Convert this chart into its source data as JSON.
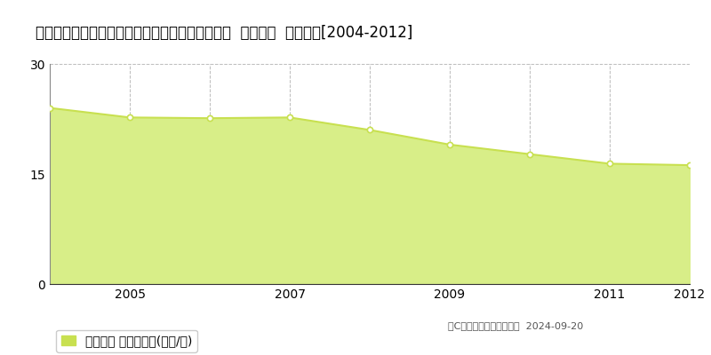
{
  "title": "愛知県知多郡南知多町大字片名字新師崎１０番５  公示地価  地価推移[2004-2012]",
  "years": [
    2004,
    2005,
    2006,
    2007,
    2008,
    2009,
    2010,
    2011,
    2012
  ],
  "values": [
    24.0,
    22.7,
    22.6,
    22.7,
    21.0,
    19.0,
    17.7,
    16.4,
    16.2
  ],
  "ylim": [
    0,
    30
  ],
  "yticks": [
    0,
    15,
    30
  ],
  "xticks": [
    2005,
    2007,
    2009,
    2011,
    2012
  ],
  "vgrid_years": [
    2005,
    2006,
    2007,
    2008,
    2009,
    2010,
    2011
  ],
  "line_color": "#c8e050",
  "fill_color": "#d8ee88",
  "grid_color": "#aaaaaa",
  "bg_color": "#ffffff",
  "legend_label": "公示地価 平均坪単価(万円/坪)",
  "legend_color": "#c8e050",
  "copyright_text": "（C）土地価格ドットコム  2024-09-20",
  "title_fontsize": 12,
  "tick_fontsize": 10,
  "legend_fontsize": 10,
  "copyright_fontsize": 8
}
